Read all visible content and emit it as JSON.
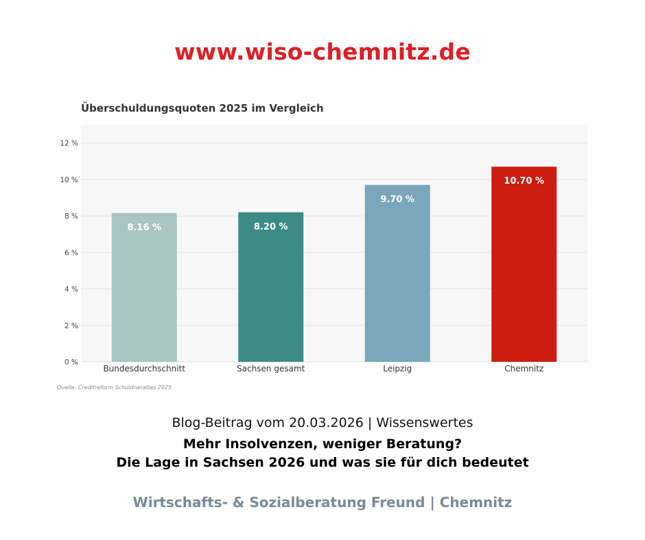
{
  "header": {
    "url": "www.wiso-chemnitz.de"
  },
  "chart_data": {
    "type": "bar",
    "title": "Überschuldungsquoten 2025 im Vergleich",
    "categories": [
      "Bundesdurchschnitt",
      "Sachsen gesamt",
      "Leipzig",
      "Chemnitz"
    ],
    "values": [
      8.16,
      8.2,
      9.7,
      10.7
    ],
    "value_labels": [
      "8.16 %",
      "8.20 %",
      "9.70 %",
      "10.70 %"
    ],
    "colors": [
      "#a8c5c4",
      "#3d8b88",
      "#7ba7bc",
      "#cd1c10"
    ],
    "yticks": [
      "0 %",
      "2 %",
      "4 %",
      "6 %",
      "8 %",
      "10 %",
      "12 %"
    ],
    "ytick_values": [
      0,
      2,
      4,
      6,
      8,
      10,
      12
    ],
    "ylim": [
      0,
      13
    ],
    "xlabel": "",
    "ylabel": "",
    "grid": true,
    "plot_background": "#f7f7f7",
    "source": "Quelle: Creditreform Schuldneratlas 2025"
  },
  "blog": {
    "meta": "Blog-Beitrag vom 20.03.2026 | Wissenswertes",
    "title_line1": "Mehr Insolvenzen, weniger Beratung?",
    "title_line2": "Die Lage in Sachsen 2026 und was sie für dich bedeutet"
  },
  "footer": {
    "company": "Wirtschafts- & Sozialberatung Freund | Chemnitz"
  }
}
